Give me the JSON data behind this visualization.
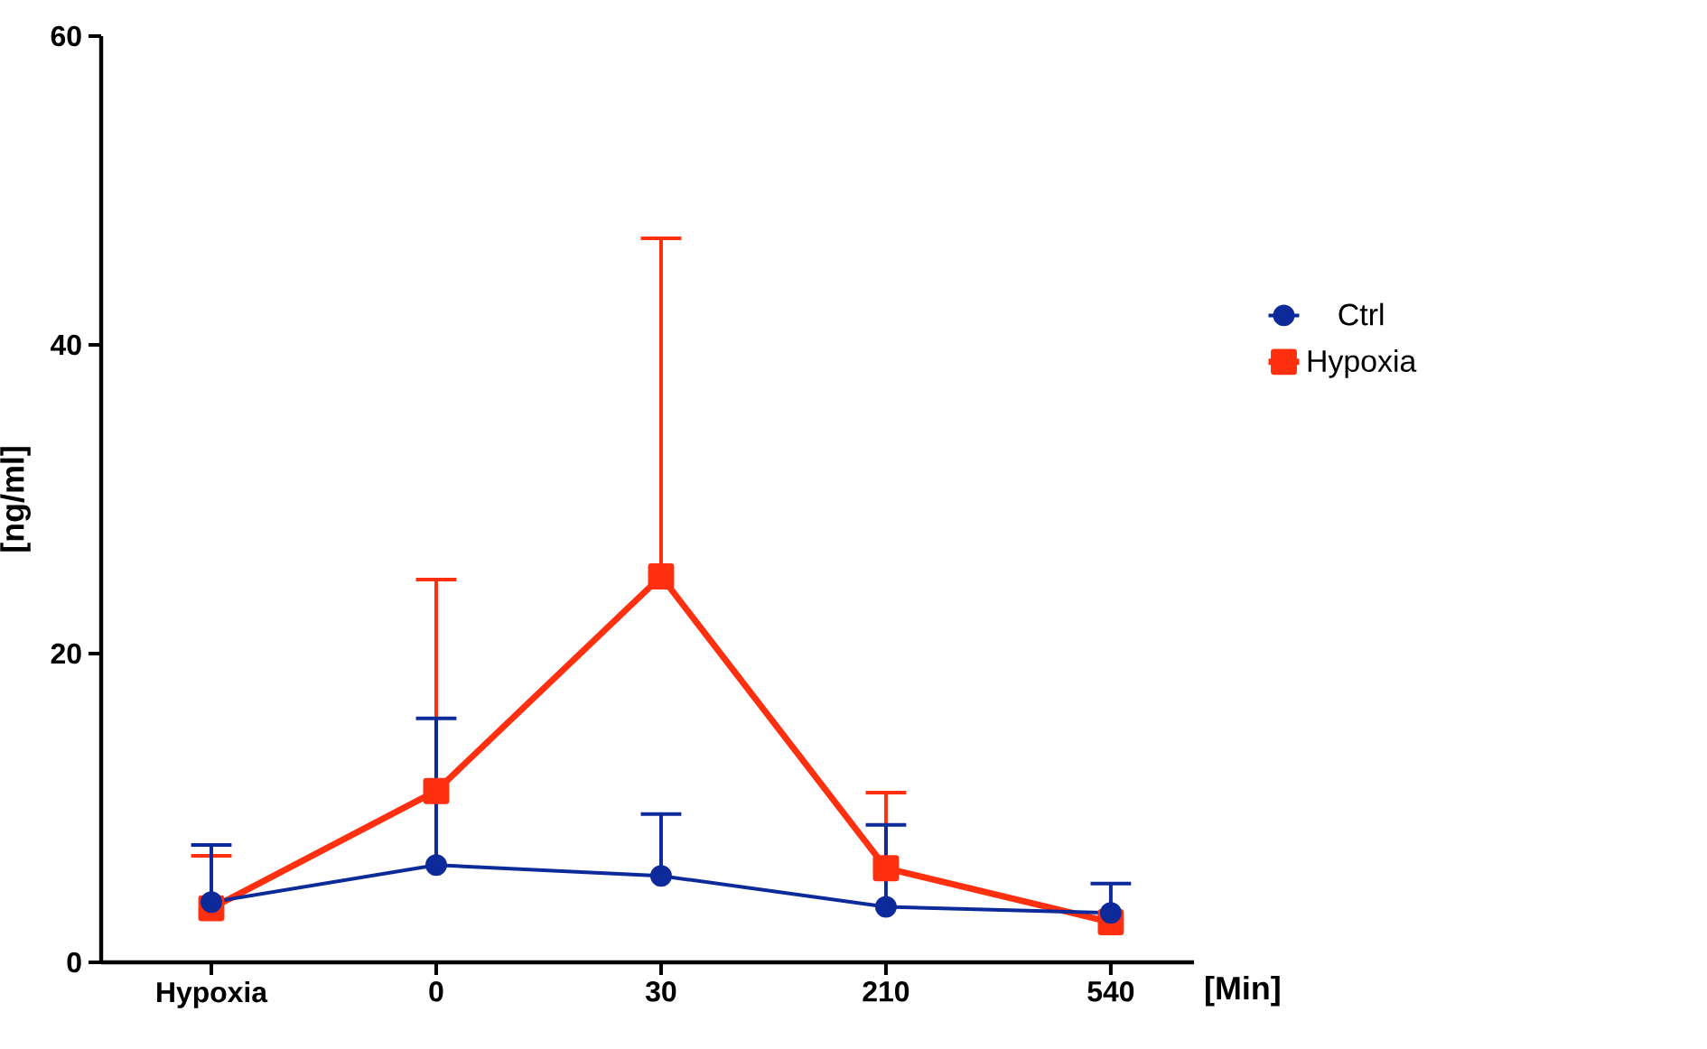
{
  "chart_data": {
    "type": "line",
    "xlabel": "[Min]",
    "ylabel": "[ng/ml]",
    "categories": [
      "Hypoxia",
      "0",
      "30",
      "210",
      "540"
    ],
    "series": [
      {
        "name": "Ctrl",
        "color": "#0d2a9a",
        "marker": "circle",
        "values": [
          3.9,
          6.3,
          5.6,
          3.6,
          3.2
        ],
        "errors": [
          [
            3.9,
            7.6
          ],
          [
            6.3,
            15.8
          ],
          [
            5.6,
            9.6
          ],
          [
            3.6,
            8.9
          ],
          [
            3.2,
            5.1
          ]
        ]
      },
      {
        "name": "Hypoxia",
        "color": "#ff3010",
        "marker": "square",
        "values": [
          3.5,
          11.1,
          25.0,
          6.1,
          2.6
        ],
        "errors": [
          [
            3.5,
            6.9
          ],
          [
            11.1,
            24.8
          ],
          [
            25.0,
            46.9
          ],
          [
            6.1,
            11.0
          ],
          null
        ]
      }
    ],
    "ylim": [
      0,
      60
    ],
    "yticks": [
      0,
      20,
      40,
      60
    ],
    "grid": false,
    "legend": "right"
  }
}
